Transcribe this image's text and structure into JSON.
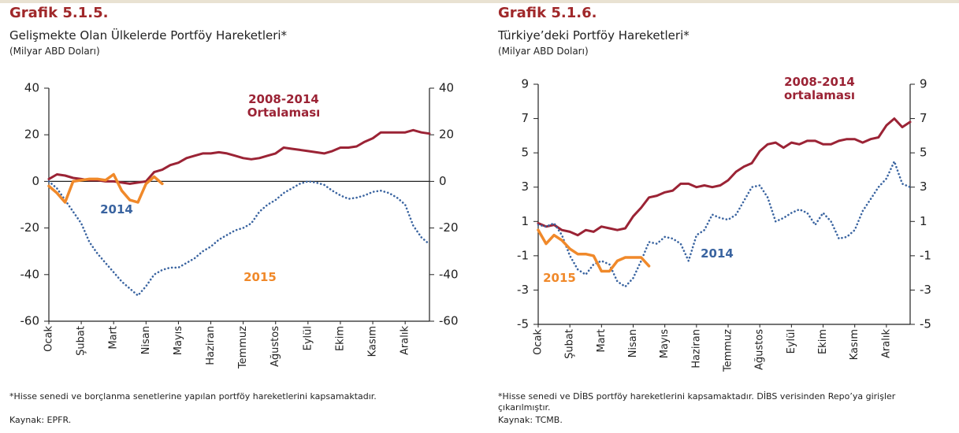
{
  "chart_data": [
    {
      "type": "line",
      "title": "Grafik 5.1.5.",
      "subtitle": "Gelişmekte Olan Ülkelerde Portföy Hareketleri*",
      "unit": "(Milyar ABD Doları)",
      "categories": [
        "Ocak",
        null,
        null,
        null,
        "Şubat",
        null,
        null,
        null,
        "Mart",
        null,
        null,
        null,
        "Nisan",
        null,
        null,
        null,
        "Mayıs",
        null,
        null,
        null,
        "Haziran",
        null,
        null,
        null,
        "Temmuz",
        null,
        null,
        null,
        "Ağustos",
        null,
        null,
        null,
        "Eylül",
        null,
        null,
        null,
        "Ekim",
        null,
        null,
        null,
        "Kasım",
        null,
        null,
        null,
        "Aralık",
        null,
        null,
        null
      ],
      "series": [
        {
          "name": "2008-2014 Ortalaması",
          "color": "#9b2335",
          "style": "solid",
          "values": [
            1,
            3,
            2.5,
            1.5,
            1,
            0.5,
            0.5,
            0,
            0,
            -0.5,
            -1,
            -0.5,
            0,
            4,
            5,
            7,
            8,
            10,
            11,
            12,
            12,
            12.5,
            12,
            11,
            10,
            9.5,
            10,
            11,
            12,
            14.5,
            14,
            13.5,
            13,
            12.5,
            12,
            13,
            14.5,
            14.5,
            15,
            17,
            18.5,
            21,
            21,
            21,
            21,
            22,
            21,
            20.5
          ]
        },
        {
          "name": "2014",
          "color": "#3a64a0",
          "style": "dotted",
          "values": [
            0,
            -3,
            -8,
            -13,
            -18,
            -26,
            -31,
            -35,
            -39,
            -43,
            -46,
            -49,
            -45,
            -40,
            -38,
            -37,
            -37,
            -35,
            -33,
            -30,
            -28,
            -25,
            -23,
            -21,
            -20,
            -18,
            -13,
            -10,
            -8,
            -5,
            -3,
            -1,
            0,
            -0.5,
            -1.5,
            -4,
            -6,
            -7.5,
            -7,
            -6,
            -4.5,
            -4,
            -5,
            -7,
            -10,
            -19,
            -24,
            -27
          ]
        },
        {
          "name": "2015",
          "color": "#f0892a",
          "style": "solid",
          "values": [
            -2,
            -5,
            -9,
            0,
            0.5,
            1,
            1,
            0.5,
            3,
            -4,
            -8,
            -9,
            -1,
            2,
            -1,
            null,
            null,
            null,
            null,
            null,
            null,
            null,
            null,
            null,
            null,
            null,
            null,
            null,
            null,
            null,
            null,
            null,
            null,
            null,
            null,
            null,
            null,
            null,
            null,
            null,
            null,
            null,
            null,
            null,
            null,
            null,
            null,
            null
          ]
        }
      ],
      "ylim": [
        -60,
        40
      ],
      "yticks": [
        -60,
        -40,
        -20,
        0,
        20,
        40
      ],
      "y2lim": [
        -60,
        40
      ],
      "y2ticks": [
        -60,
        -40,
        -20,
        0,
        20,
        40
      ],
      "zero_line": true,
      "footnote": "*Hisse senedi ve borçlanma senetlerine yapılan portföy hareketlerini kapsamaktadır.",
      "source": "Kaynak: EPFR."
    },
    {
      "type": "line",
      "title": "Grafik 5.1.6.",
      "subtitle": "Türkiye’deki Portföy Hareketleri*",
      "unit": "(Milyar ABD Doları)",
      "categories": [
        "Ocak",
        null,
        null,
        null,
        "Şubat",
        null,
        null,
        null,
        "Mart",
        null,
        null,
        null,
        "Nisan",
        null,
        null,
        null,
        "Mayıs",
        null,
        null,
        null,
        "Haziran",
        null,
        null,
        null,
        "Temmuz",
        null,
        null,
        null,
        "Ağustos",
        null,
        null,
        null,
        "Eylül",
        null,
        null,
        null,
        "Ekim",
        null,
        null,
        null,
        "Kasım",
        null,
        null,
        null,
        "Aralık",
        null,
        null,
        null
      ],
      "series": [
        {
          "name": "2008-2014 ortalaması",
          "color": "#9b2335",
          "style": "solid",
          "values": [
            0.9,
            0.7,
            0.8,
            0.5,
            0.4,
            0.2,
            0.5,
            0.4,
            0.7,
            0.6,
            0.5,
            0.6,
            1.3,
            1.8,
            2.4,
            2.5,
            2.7,
            2.8,
            3.2,
            3.2,
            3.0,
            3.1,
            3.0,
            3.1,
            3.4,
            3.9,
            4.2,
            4.4,
            5.1,
            5.5,
            5.6,
            5.3,
            5.6,
            5.5,
            5.7,
            5.7,
            5.5,
            5.5,
            5.7,
            5.8,
            5.8,
            5.6,
            5.8,
            5.9,
            6.6,
            7.0,
            6.5,
            6.8
          ]
        },
        {
          "name": "2014",
          "color": "#3a64a0",
          "style": "dotted",
          "values": [
            0.8,
            0.7,
            0.9,
            0.2,
            -1.0,
            -1.8,
            -2.1,
            -1.5,
            -1.3,
            -1.5,
            -2.5,
            -2.8,
            -2.3,
            -1.3,
            -0.2,
            -0.3,
            0.1,
            0,
            -0.3,
            -1.3,
            0.2,
            0.5,
            1.4,
            1.2,
            1.1,
            1.4,
            2.2,
            3.0,
            3.1,
            2.4,
            1.0,
            1.2,
            1.5,
            1.7,
            1.5,
            0.8,
            1.5,
            1.0,
            0.0,
            0.1,
            0.5,
            1.6,
            2.3,
            3.0,
            3.5,
            4.5,
            3.2,
            3.0
          ]
        },
        {
          "name": "2015",
          "color": "#f0892a",
          "style": "solid",
          "values": [
            0.5,
            -0.3,
            0.2,
            -0.1,
            -0.6,
            -0.9,
            -0.9,
            -1.0,
            -1.9,
            -1.9,
            -1.3,
            -1.1,
            -1.1,
            -1.1,
            -1.6,
            null,
            null,
            null,
            null,
            null,
            null,
            null,
            null,
            null,
            null,
            null,
            null,
            null,
            null,
            null,
            null,
            null,
            null,
            null,
            null,
            null,
            null,
            null,
            null,
            null,
            null,
            null,
            null,
            null,
            null,
            null,
            null,
            null
          ]
        }
      ],
      "ylim": [
        -5,
        9
      ],
      "yticks": [
        -5,
        -3,
        -1,
        1,
        3,
        5,
        7,
        9
      ],
      "y2lim": [
        -5,
        9
      ],
      "y2ticks": [
        -5,
        -3,
        -1,
        1,
        3,
        5,
        7,
        9
      ],
      "zero_line": false,
      "footnote": "*Hisse senedi ve DİBS portföy hareketlerini kapsamaktadır. DİBS verisinden Repo’ya girişler çıkarılmıştır.",
      "source": "Kaynak: TCMB."
    }
  ]
}
